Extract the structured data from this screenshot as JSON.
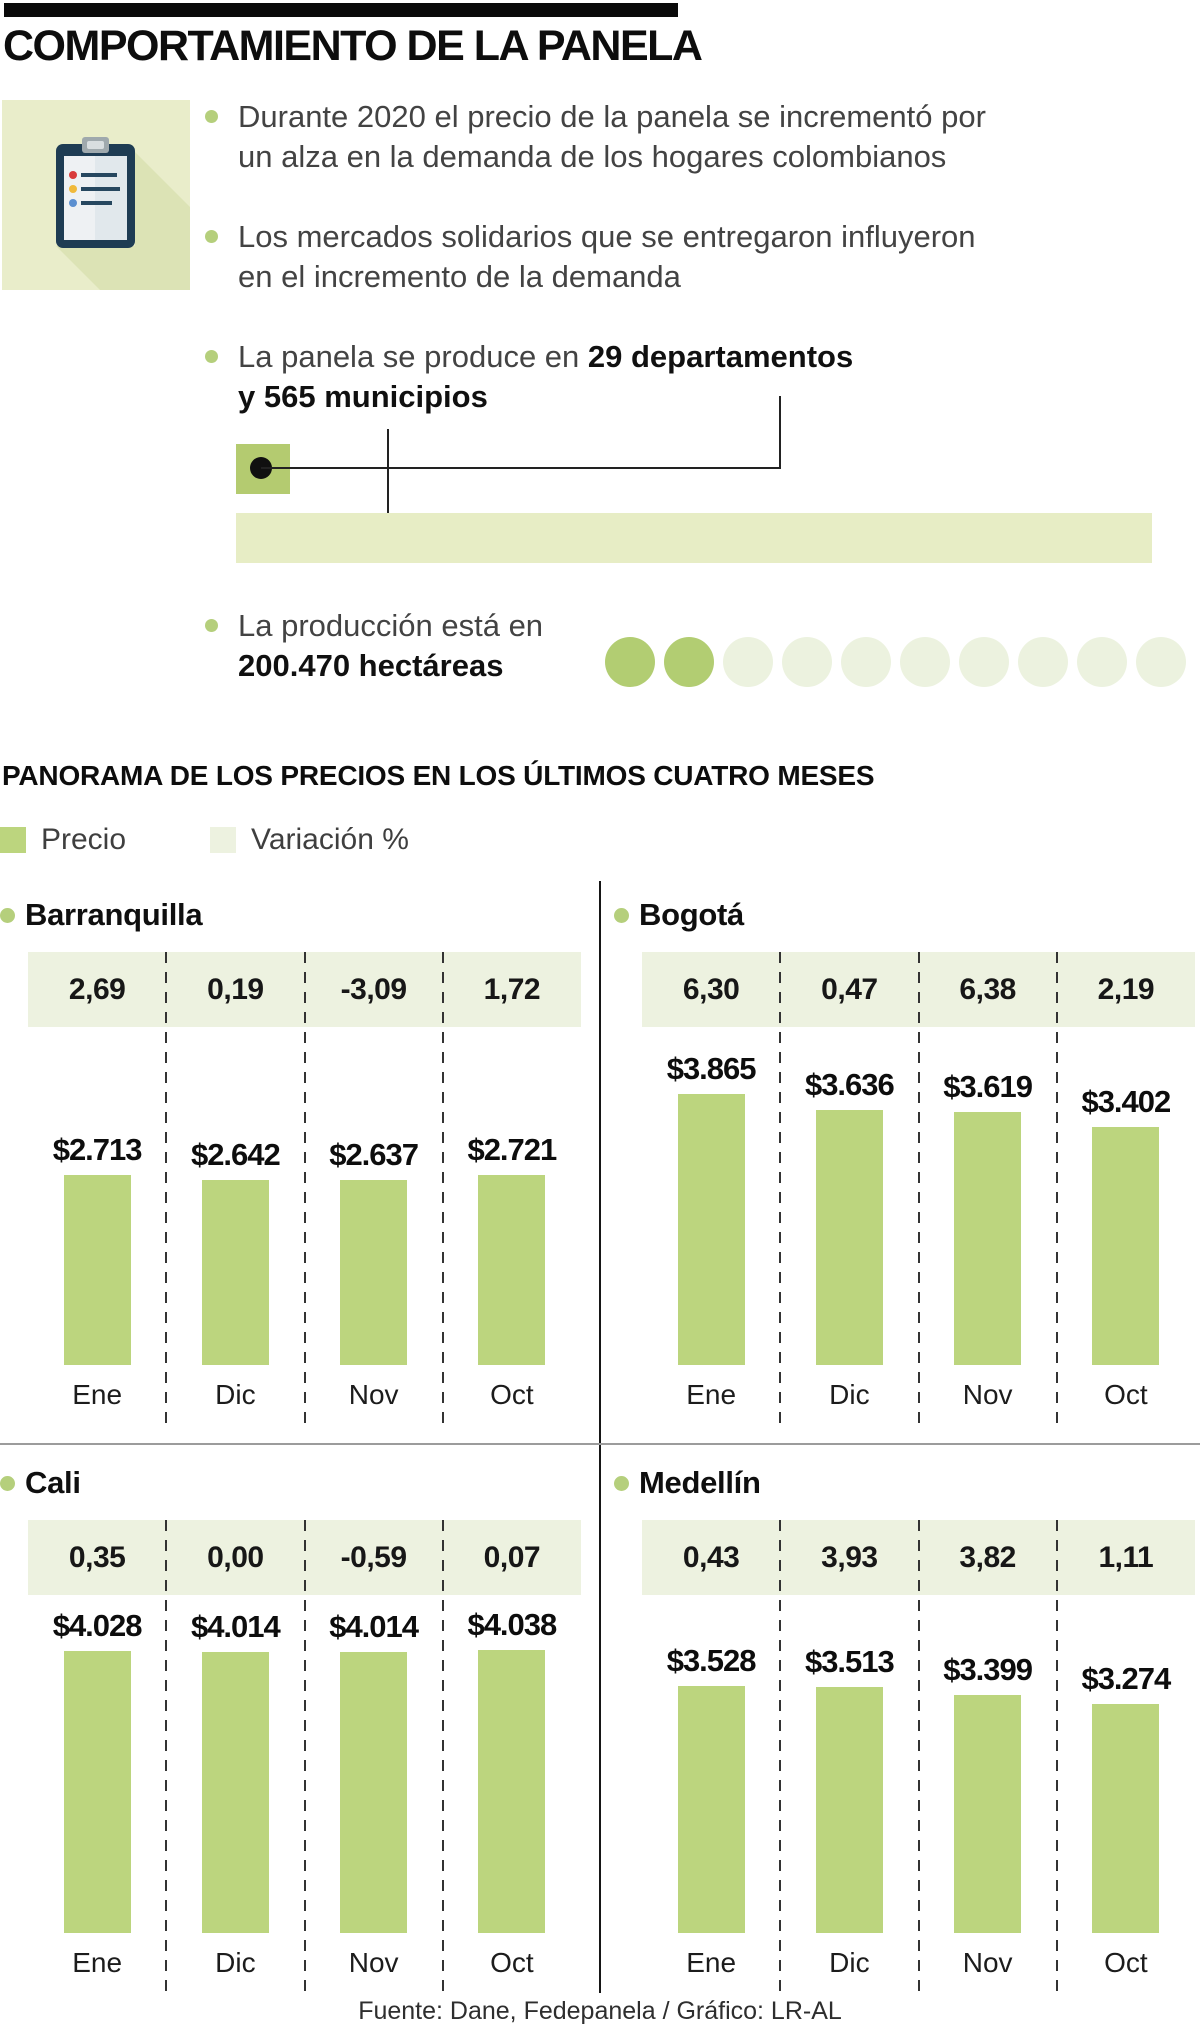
{
  "page": {
    "title": "COMPORTAMIENTO DE LA PANELA",
    "footer": "Fuente: Dane, Fedepanela / Gráfico: LR-AL"
  },
  "intro": {
    "bullets": [
      {
        "line1": "Durante 2020 el precio de la panela se incrementó por",
        "line2": "un alza en la demanda de los hogares colombianos"
      },
      {
        "line1": "Los mercados solidarios que se entregaron influyeron",
        "line2": "en el incremento de la demanda"
      },
      {
        "pre": "La panela se produce en ",
        "bold1": "29 departamentos",
        "bold2": "y 565 municipios"
      },
      {
        "pre": "La producción está en",
        "bold": "200.470 hectáreas"
      }
    ],
    "production_circles": {
      "filled": 2,
      "total": 10
    }
  },
  "section": {
    "title": "PANORAMA DE LOS PRECIOS EN LOS ÚLTIMOS CUATRO MESES",
    "legend": [
      {
        "label": "Precio",
        "color": "#bcd57e"
      },
      {
        "label": "Variación %",
        "color": "#edf2e0"
      }
    ]
  },
  "chart_data": [
    {
      "type": "bar",
      "title": "Barranquilla",
      "categories": [
        "Ene",
        "Dic",
        "Nov",
        "Oct"
      ],
      "series": [
        {
          "name": "Precio",
          "values": [
            2713,
            2642,
            2637,
            2721
          ],
          "labels": [
            "$2.713",
            "$2.642",
            "$2.637",
            "$2.721"
          ]
        },
        {
          "name": "Variación %",
          "values": [
            2.69,
            0.19,
            -3.09,
            1.72
          ],
          "labels": [
            "2,69",
            "0,19",
            "-3,09",
            "1,72"
          ]
        }
      ],
      "ylim": [
        0,
        4300
      ],
      "legend_position": "top",
      "grid": false
    },
    {
      "type": "bar",
      "title": "Bogotá",
      "categories": [
        "Ene",
        "Dic",
        "Nov",
        "Oct"
      ],
      "series": [
        {
          "name": "Precio",
          "values": [
            3865,
            3636,
            3619,
            3402
          ],
          "labels": [
            "$3.865",
            "$3.636",
            "$3.619",
            "$3.402"
          ]
        },
        {
          "name": "Variación %",
          "values": [
            6.3,
            0.47,
            6.38,
            2.19
          ],
          "labels": [
            "6,30",
            "0,47",
            "6,38",
            "2,19"
          ]
        }
      ],
      "ylim": [
        0,
        4300
      ],
      "legend_position": "top",
      "grid": false
    },
    {
      "type": "bar",
      "title": "Cali",
      "categories": [
        "Ene",
        "Dic",
        "Nov",
        "Oct"
      ],
      "series": [
        {
          "name": "Precio",
          "values": [
            4028,
            4014,
            4014,
            4038
          ],
          "labels": [
            "$4.028",
            "$4.014",
            "$4.014",
            "$4.038"
          ]
        },
        {
          "name": "Variación %",
          "values": [
            0.35,
            0.0,
            -0.59,
            0.07
          ],
          "labels": [
            "0,35",
            "0,00",
            "-0,59",
            "0,07"
          ]
        }
      ],
      "ylim": [
        0,
        4300
      ],
      "legend_position": "top",
      "grid": false
    },
    {
      "type": "bar",
      "title": "Medellín",
      "categories": [
        "Ene",
        "Dic",
        "Nov",
        "Oct"
      ],
      "series": [
        {
          "name": "Precio",
          "values": [
            3528,
            3513,
            3399,
            3274
          ],
          "labels": [
            "$3.528",
            "$3.513",
            "$3.399",
            "$3.274"
          ]
        },
        {
          "name": "Variación %",
          "values": [
            0.43,
            3.93,
            3.82,
            1.11
          ],
          "labels": [
            "0,43",
            "3,93",
            "3,82",
            "1,11"
          ]
        }
      ],
      "ylim": [
        0,
        4300
      ],
      "legend_position": "top",
      "grid": false
    }
  ],
  "colors": {
    "bar": "#bcd57e",
    "band": "#edf2e0",
    "accent": "#b5cf7c",
    "connsquare": "#b4cb70",
    "lightband": "#e7edc5",
    "circlelight": "#ecf2df",
    "circledark": "#b2cd72",
    "iconbg": "#e9edca",
    "iconshadow": "#dce3b5"
  }
}
